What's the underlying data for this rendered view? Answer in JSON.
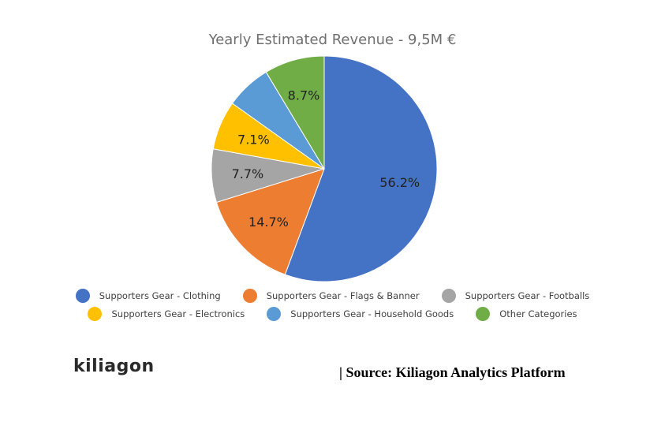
{
  "chart_data": {
    "type": "pie",
    "title": "Yearly Estimated Revenue - 9,5M €",
    "slices": [
      {
        "label": "Supporters Gear - Clothing",
        "value": 56.2,
        "display": "56.2%",
        "color": "#4472c4"
      },
      {
        "label": "Supporters Gear - Flags & Banner",
        "value": 14.7,
        "display": "14.7%",
        "color": "#ed7d31"
      },
      {
        "label": "Supporters Gear - Footballs",
        "value": 7.7,
        "display": "7.7%",
        "color": "#a5a5a5"
      },
      {
        "label": "Supporters Gear - Electronics",
        "value": 7.1,
        "display": "7.1%",
        "color": "#ffc000"
      },
      {
        "label": "Supporters Gear - Household Goods",
        "value": 6.6,
        "display": "",
        "color": "#5b9bd5"
      },
      {
        "label": "Other Categories",
        "value": 8.7,
        "display": "8.7%",
        "color": "#70ad47"
      }
    ],
    "legend_position": "bottom"
  },
  "brand": {
    "logo_text": "kiliagon"
  },
  "source": {
    "text": "| Source: Kiliagon Analytics Platform"
  }
}
